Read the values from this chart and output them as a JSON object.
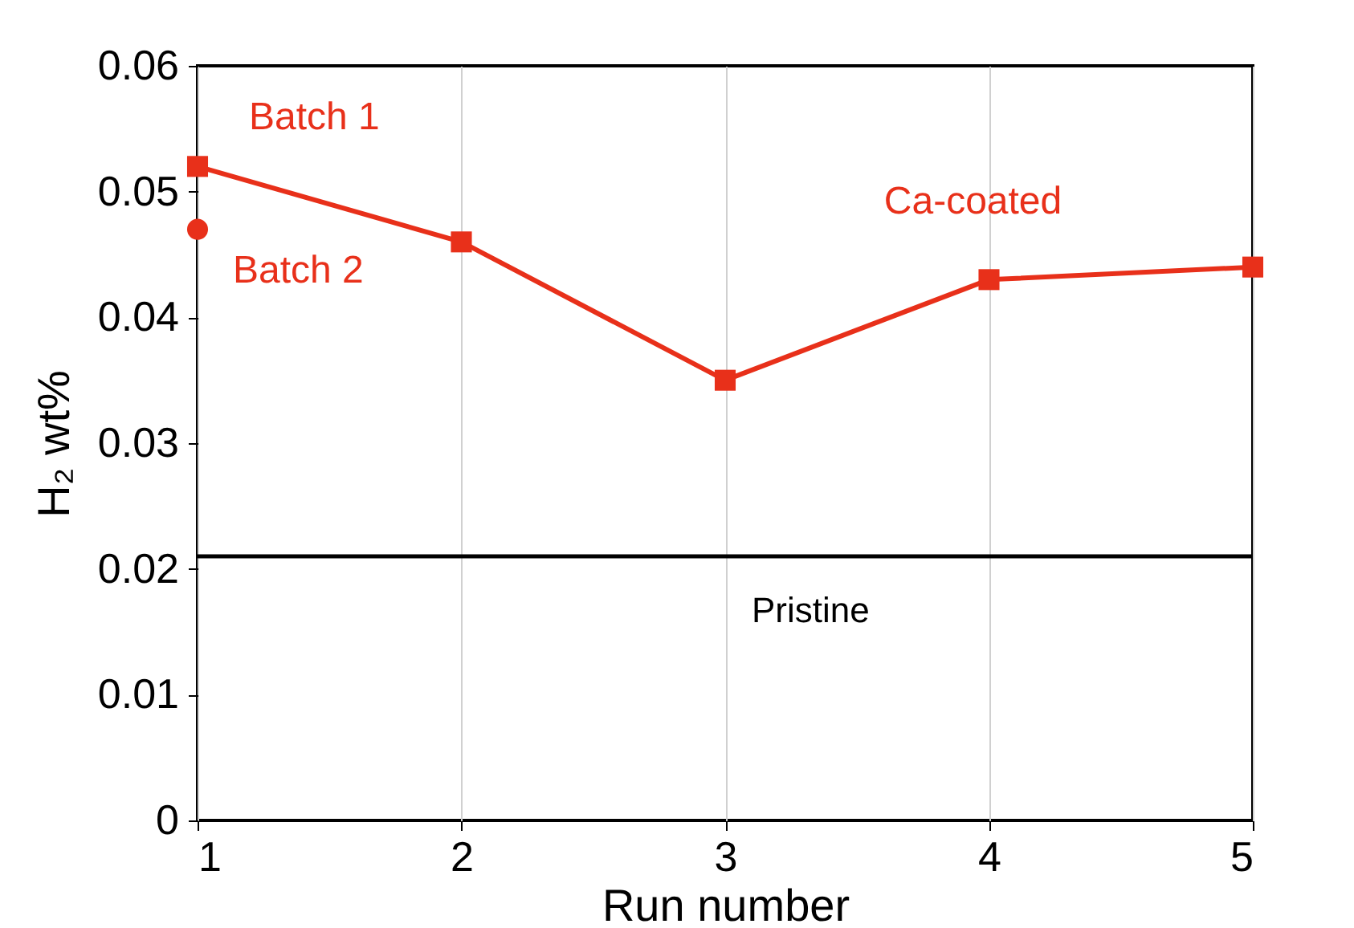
{
  "chart_data": {
    "type": "line",
    "xlabel": "Run number",
    "ylabel": "H₂ wt%",
    "x": [
      1,
      2,
      3,
      4,
      5
    ],
    "series": [
      {
        "name": "Ca-coated",
        "color": "#e8301a",
        "marker": "square",
        "values": [
          0.052,
          0.046,
          0.035,
          0.043,
          0.044
        ]
      },
      {
        "name": "Batch 2",
        "type": "scatter",
        "color": "#e8301a",
        "marker": "circle",
        "x": [
          1
        ],
        "values": [
          0.047
        ]
      }
    ],
    "annotations": [
      {
        "text": "Batch 1",
        "x": 1,
        "y": 0.052
      }
    ],
    "ref_lines": [
      {
        "axis": "y",
        "value": 0.021,
        "label": "Pristine",
        "color": "#000000"
      }
    ],
    "xlim": [
      1,
      5
    ],
    "xticks": [
      1,
      2,
      3,
      4,
      5
    ],
    "ylim": [
      0,
      0.06
    ],
    "yticks": [
      0,
      0.01,
      0.02,
      0.03,
      0.04,
      0.05,
      0.06
    ],
    "grid": "x",
    "line_style": "solid"
  }
}
